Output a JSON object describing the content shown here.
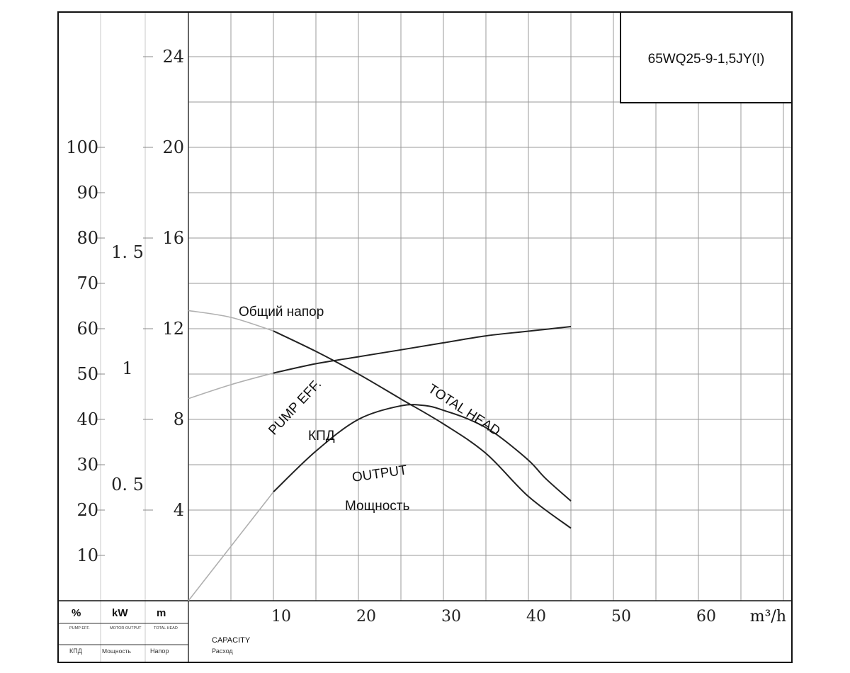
{
  "chart_data": {
    "type": "line",
    "model_label": "65WQ25-9-1,5JY(I)",
    "x_axis": {
      "ticks": [
        "10",
        "20",
        "30",
        "40",
        "50",
        "60"
      ],
      "tick_values": [
        10,
        20,
        30,
        40,
        50,
        60
      ],
      "unit": "m³/h",
      "label_en": "CAPACITY",
      "label_ru": "Расход",
      "range": [
        0,
        72
      ]
    },
    "axes": {
      "efficiency": {
        "unit": "%",
        "label_en": "PUMP EFF.",
        "label_ru": "КПД",
        "ticks": [
          "10",
          "20",
          "30",
          "40",
          "50",
          "60",
          "70",
          "80",
          "90",
          "100"
        ],
        "tick_values": [
          10,
          20,
          30,
          40,
          50,
          60,
          70,
          80,
          90,
          100
        ]
      },
      "power": {
        "unit": "kW",
        "label_en": "MOTOR OUTPUT",
        "label_ru": "Мощность",
        "ticks": [
          "0. 5",
          "1",
          "1. 5"
        ],
        "tick_values": [
          0.5,
          1.0,
          1.5
        ]
      },
      "head": {
        "unit": "m",
        "label_en": "TOTAL HEAD",
        "label_ru": "Напор",
        "ticks": [
          "4",
          "8",
          "12",
          "16",
          "20",
          "24"
        ],
        "tick_values": [
          4,
          8,
          12,
          16,
          20,
          24
        ],
        "range": [
          0,
          26
        ]
      }
    },
    "series": [
      {
        "name": "TOTAL HEAD",
        "name_ru": "Общий напор",
        "axis": "head",
        "x": [
          0,
          5,
          10,
          15,
          20,
          25,
          30,
          35,
          40,
          45
        ],
        "y": [
          12.8,
          12.5,
          11.9,
          11.0,
          10.0,
          8.9,
          7.8,
          6.5,
          4.6,
          3.2
        ]
      },
      {
        "name": "PUMP EFF.",
        "name_ru": "КПД",
        "axis": "efficiency",
        "x": [
          0,
          5,
          10,
          15,
          20,
          25,
          28,
          30,
          33,
          36,
          40,
          42,
          45
        ],
        "y": [
          0,
          12,
          24,
          33,
          40,
          43,
          43,
          42,
          40,
          37,
          31,
          27,
          22
        ]
      },
      {
        "name": "OUTPUT",
        "name_ru": "Мощность",
        "axis": "power",
        "x": [
          0,
          5,
          10,
          15,
          20,
          25,
          30,
          35,
          40,
          45
        ],
        "y": [
          0.87,
          0.93,
          0.98,
          1.02,
          1.05,
          1.08,
          1.11,
          1.14,
          1.16,
          1.18
        ]
      }
    ],
    "grid": true
  }
}
